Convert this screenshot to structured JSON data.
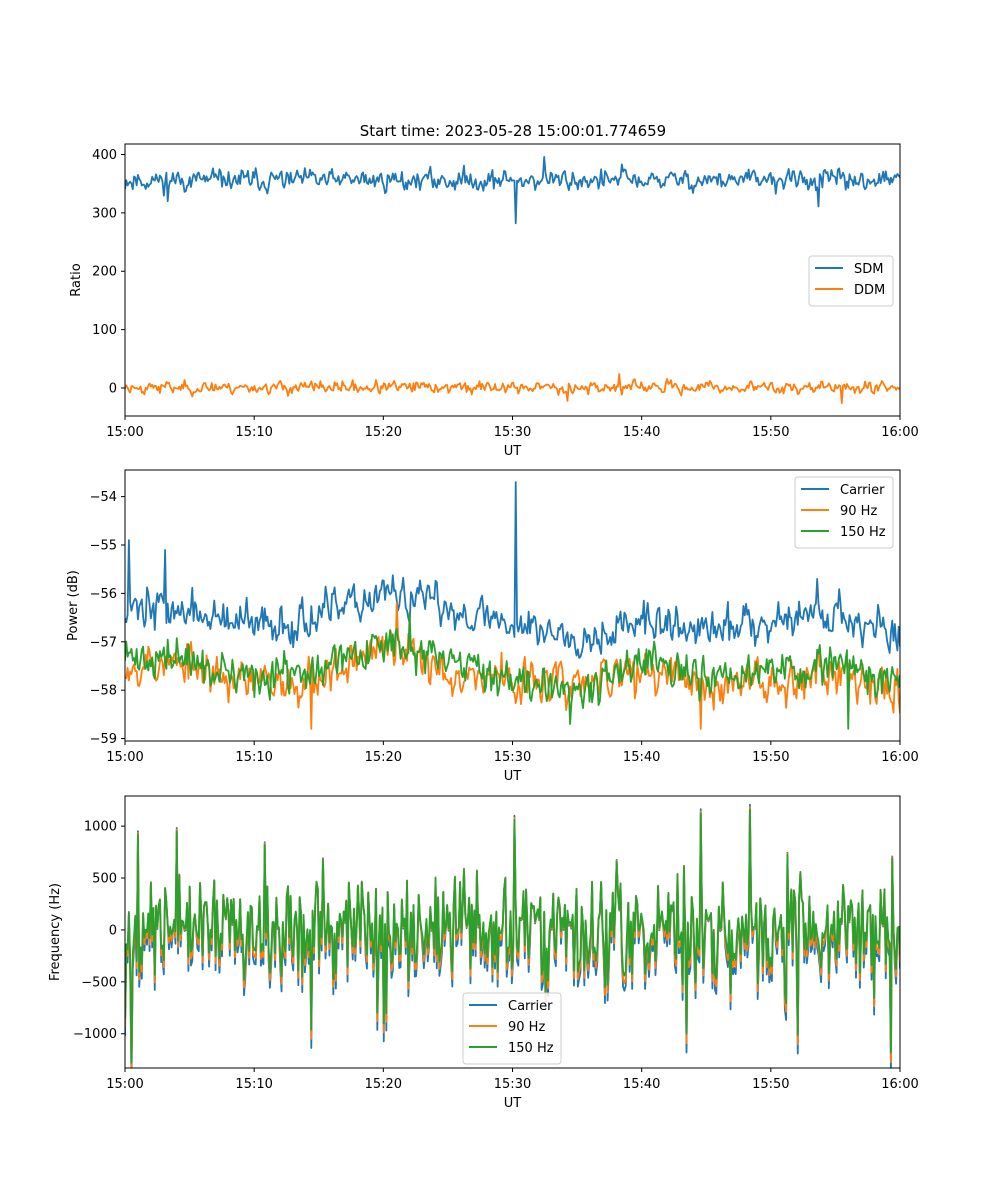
{
  "title": "Start time: 2023-05-28 15:00:01.774659",
  "chart_data": [
    {
      "type": "line",
      "xlabel": "UT",
      "ylabel": "Ratio",
      "x_range": [
        "15:00",
        "16:00"
      ],
      "x_ticks": [
        "15:00",
        "15:10",
        "15:20",
        "15:30",
        "15:40",
        "15:50",
        "16:00"
      ],
      "ylim": [
        -48,
        418
      ],
      "y_ticks": [
        0,
        100,
        200,
        300,
        400
      ],
      "y_tick_labels": [
        "0",
        "100",
        "200",
        "300",
        "400"
      ],
      "legend_position": "center-right",
      "series": [
        {
          "name": "SDM",
          "color": "#1f77b4",
          "mean": 356,
          "noise": 12,
          "seed": 11,
          "spikes": [
            {
              "t": 30.3,
              "v": 282
            },
            {
              "t": 32.5,
              "v": 396
            },
            {
              "t": 3.3,
              "v": 320
            },
            {
              "t": 53.7,
              "v": 311
            },
            {
              "t": 38.5,
              "v": 383
            }
          ]
        },
        {
          "name": "DDM",
          "color": "#ff7f0e",
          "mean": 1,
          "noise": 7,
          "seed": 23,
          "spikes": [
            {
              "t": 38.3,
              "v": 24
            },
            {
              "t": 55.5,
              "v": -26
            },
            {
              "t": 34.3,
              "v": -22
            }
          ]
        }
      ]
    },
    {
      "type": "line",
      "xlabel": "UT",
      "ylabel": "Power (dB)",
      "x_range": [
        "15:00",
        "16:00"
      ],
      "x_ticks": [
        "15:00",
        "15:10",
        "15:20",
        "15:30",
        "15:40",
        "15:50",
        "16:00"
      ],
      "ylim": [
        -59.05,
        -53.45
      ],
      "y_ticks": [
        -59,
        -58,
        -57,
        -56,
        -55,
        -54
      ],
      "y_tick_labels": [
        "−59",
        "−58",
        "−57",
        "−56",
        "−55",
        "−54"
      ],
      "legend_position": "top-right",
      "series": [
        {
          "name": "Carrier",
          "color": "#1f77b4",
          "seed": 37,
          "noise": 0.28,
          "profile": [
            [
              0,
              -56.2
            ],
            [
              5,
              -56.4
            ],
            [
              10,
              -56.7
            ],
            [
              15,
              -56.5
            ],
            [
              20,
              -56.0
            ],
            [
              25,
              -56.3
            ],
            [
              30,
              -56.6
            ],
            [
              35,
              -56.9
            ],
            [
              40,
              -56.6
            ],
            [
              45,
              -56.8
            ],
            [
              50,
              -56.5
            ],
            [
              55,
              -56.4
            ],
            [
              60,
              -56.9
            ]
          ],
          "spikes": [
            {
              "t": 30.3,
              "v": -53.7
            },
            {
              "t": 0.3,
              "v": -54.9
            },
            {
              "t": 3.1,
              "v": -55.1
            },
            {
              "t": 53.6,
              "v": -55.7
            }
          ]
        },
        {
          "name": "90 Hz",
          "color": "#ff7f0e",
          "seed": 53,
          "noise": 0.3,
          "profile": [
            [
              0,
              -57.4
            ],
            [
              5,
              -57.5
            ],
            [
              10,
              -57.9
            ],
            [
              15,
              -57.7
            ],
            [
              20,
              -57.1
            ],
            [
              25,
              -57.6
            ],
            [
              30,
              -57.8
            ],
            [
              35,
              -57.9
            ],
            [
              40,
              -57.6
            ],
            [
              45,
              -57.9
            ],
            [
              50,
              -57.8
            ],
            [
              55,
              -57.6
            ],
            [
              60,
              -57.9
            ]
          ],
          "spikes": [
            {
              "t": 14.4,
              "v": -58.8
            },
            {
              "t": 44.6,
              "v": -58.8
            },
            {
              "t": 21.0,
              "v": -56.2
            }
          ]
        },
        {
          "name": "150 Hz",
          "color": "#2ca02c",
          "seed": 71,
          "noise": 0.27,
          "profile": [
            [
              0,
              -57.3
            ],
            [
              5,
              -57.4
            ],
            [
              10,
              -57.8
            ],
            [
              15,
              -57.6
            ],
            [
              20,
              -57.0
            ],
            [
              25,
              -57.5
            ],
            [
              30,
              -57.7
            ],
            [
              35,
              -57.9
            ],
            [
              40,
              -57.5
            ],
            [
              45,
              -57.8
            ],
            [
              50,
              -57.6
            ],
            [
              55,
              -57.5
            ],
            [
              60,
              -57.8
            ]
          ],
          "spikes": [
            {
              "t": 34.5,
              "v": -58.7
            },
            {
              "t": 56.0,
              "v": -58.8
            },
            {
              "t": 22.0,
              "v": -56.4
            }
          ]
        }
      ]
    },
    {
      "type": "line",
      "xlabel": "UT",
      "ylabel": "Frequency (Hz)",
      "x_range": [
        "15:00",
        "16:00"
      ],
      "x_ticks": [
        "15:00",
        "15:10",
        "15:20",
        "15:30",
        "15:40",
        "15:50",
        "16:00"
      ],
      "ylim": [
        -1330,
        1290
      ],
      "y_ticks": [
        -1000,
        -500,
        0,
        500,
        1000
      ],
      "y_tick_labels": [
        "−1000",
        "−500",
        "0",
        "500",
        "1000"
      ],
      "legend_position": "bottom-center",
      "series": [
        {
          "name": "Carrier",
          "color": "#1f77b4",
          "offset": -80,
          "scale": 1.06
        },
        {
          "name": "90 Hz",
          "color": "#ff7f0e",
          "offset": -40,
          "scale": 1.03
        },
        {
          "name": "150 Hz",
          "color": "#2ca02c",
          "offset": 0,
          "scale": 1.0
        }
      ],
      "base": {
        "seed": 97,
        "amplitude": 380,
        "spikes": [
          {
            "t": 48.4,
            "v": 1160
          },
          {
            "t": 44.6,
            "v": 1120
          },
          {
            "t": 30.2,
            "v": 1060
          },
          {
            "t": 59.3,
            "v": -1180
          },
          {
            "t": 43.5,
            "v": -1000
          },
          {
            "t": 14.4,
            "v": -960
          },
          {
            "t": 20.0,
            "v": -900
          },
          {
            "t": 1.0,
            "v": 920
          },
          {
            "t": 4.0,
            "v": 950
          }
        ]
      }
    }
  ]
}
